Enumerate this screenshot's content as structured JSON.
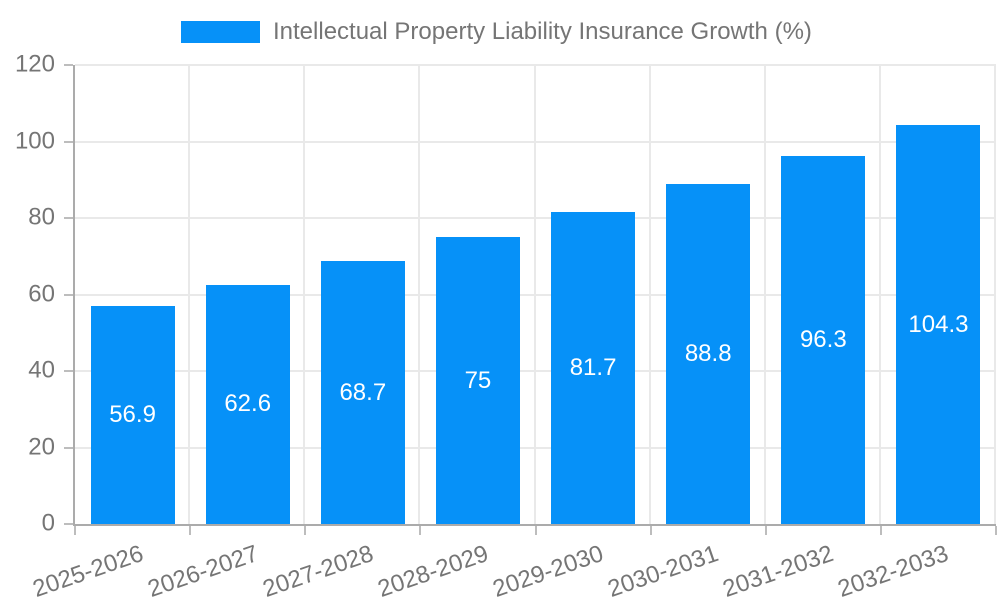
{
  "legend": {
    "label": "Intellectual Property Liability Insurance Growth (%)"
  },
  "colors": {
    "bar": "#0691F8",
    "grid": "#e9e9e9",
    "axis": "#ababab",
    "tick": "#bdbdbd",
    "tick_text": "#757575",
    "bar_label_text": "#ffffff",
    "background": "#ffffff"
  },
  "chart_data": {
    "type": "bar",
    "title": "Intellectual Property Liability Insurance Growth (%)",
    "categories": [
      "2025-2026",
      "2026-2027",
      "2027-2028",
      "2028-2029",
      "2029-2030",
      "2030-2031",
      "2031-2032",
      "2032-2033"
    ],
    "values": [
      56.9,
      62.6,
      68.7,
      75,
      81.7,
      88.8,
      96.3,
      104.3
    ],
    "value_labels": [
      "56.9",
      "62.6",
      "68.7",
      "75",
      "81.7",
      "88.8",
      "96.3",
      "104.3"
    ],
    "xlabel": "",
    "ylabel": "",
    "ylim": [
      0,
      120
    ],
    "yticks": [
      0,
      20,
      40,
      60,
      80,
      100,
      120
    ],
    "grid": true,
    "legend_position": "top",
    "value_label_position": "inside-center",
    "x_label_rotation_deg": -19
  }
}
